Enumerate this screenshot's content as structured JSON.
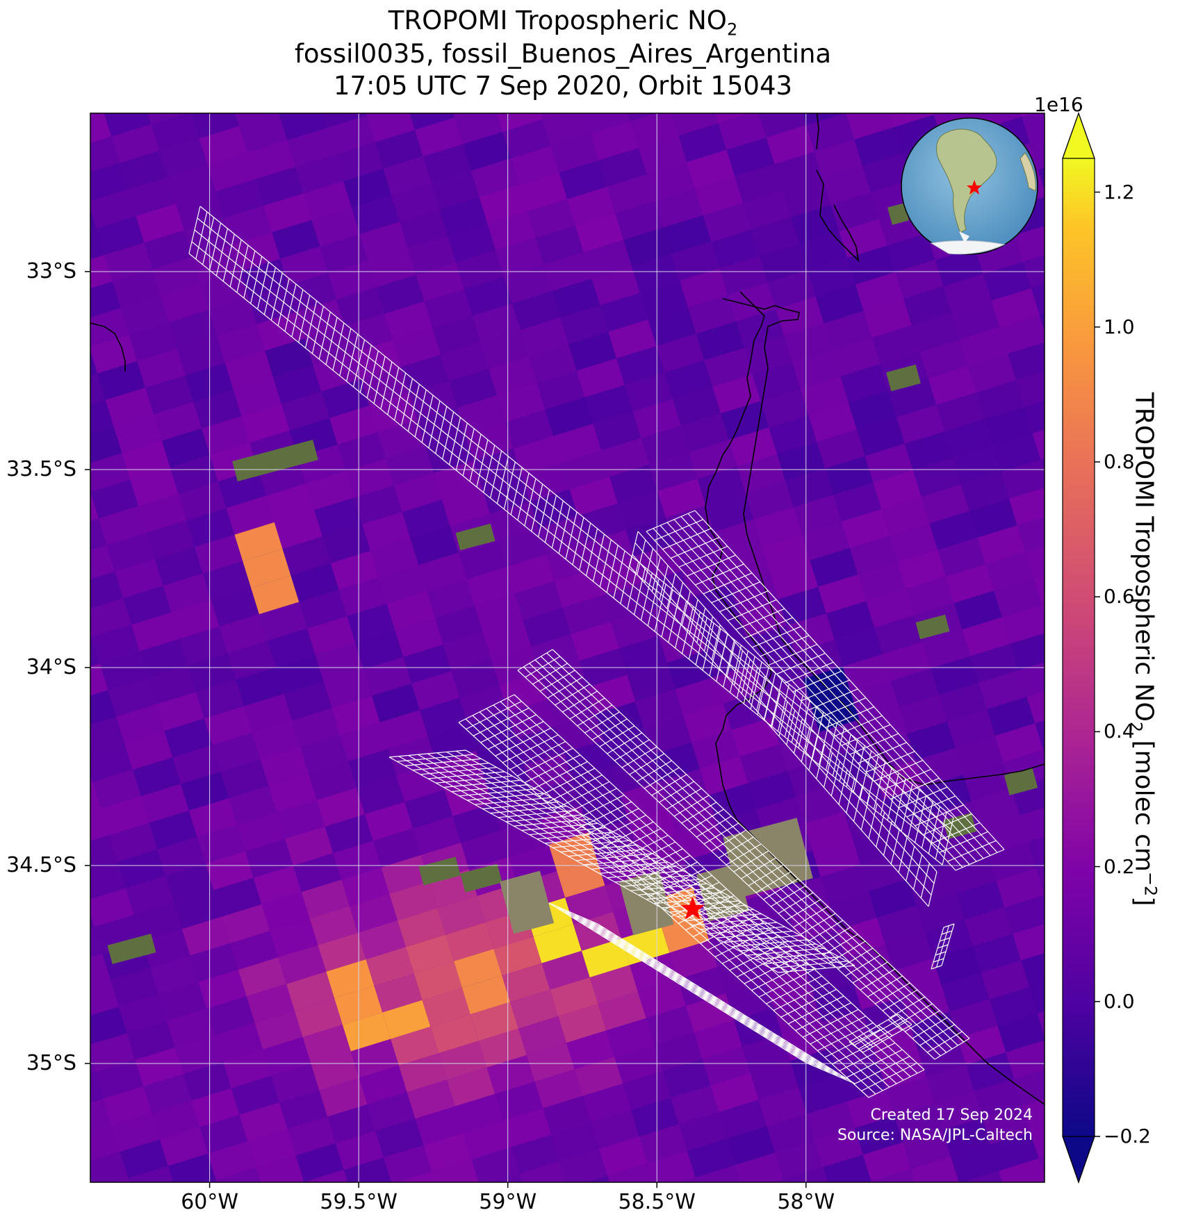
{
  "title": {
    "line1_prefix": "TROPOMI Tropospheric NO",
    "line1_sub": "2",
    "line2": "fossil0035, fossil_Buenos_Aires_Argentina",
    "line3": "17:05 UTC 7 Sep 2020, Orbit 15043"
  },
  "map": {
    "lon_range": [
      -60.4,
      -57.2
    ],
    "lat_range": [
      -35.3,
      -32.6
    ],
    "lat_ticks": [
      {
        "value": -33.0,
        "label": "33°S"
      },
      {
        "value": -33.5,
        "label": "33.5°S"
      },
      {
        "value": -34.0,
        "label": "34°S"
      },
      {
        "value": -34.5,
        "label": "34.5°S"
      },
      {
        "value": -35.0,
        "label": "35°S"
      }
    ],
    "lon_ticks": [
      {
        "value": -60.0,
        "label": "60°W"
      },
      {
        "value": -59.5,
        "label": "59.5°W"
      },
      {
        "value": -59.0,
        "label": "59°W"
      },
      {
        "value": -58.5,
        "label": "58.5°W"
      },
      {
        "value": -58.0,
        "label": "58°W"
      }
    ],
    "gridlines": true,
    "site_marker": {
      "lon": -58.38,
      "lat": -34.61,
      "symbol": "star",
      "color": "#ff0000"
    },
    "inset_globe": "south-america-globe-icon",
    "background_color": "#6a0aa8",
    "target_color": "#ffffff",
    "coastline_color": "#000000"
  },
  "colorbar": {
    "colormap": "plasma",
    "min": -0.2,
    "max": 1.25,
    "extend": "both",
    "exponent_label": "1e16",
    "ticks": [
      {
        "value": -0.2,
        "label": "−0.2"
      },
      {
        "value": 0.0,
        "label": "0.0"
      },
      {
        "value": 0.2,
        "label": "0.2"
      },
      {
        "value": 0.4,
        "label": "0.4"
      },
      {
        "value": 0.6,
        "label": "0.6"
      },
      {
        "value": 0.8,
        "label": "0.8"
      },
      {
        "value": 1.0,
        "label": "1.0"
      },
      {
        "value": 1.2,
        "label": "1.2"
      }
    ],
    "label_prefix": "TROPOMI Tropospheric NO",
    "label_sub": "2",
    "label_mid": " [molec cm",
    "label_sup": "−2",
    "label_suffix": "]"
  },
  "chart_data": {
    "type": "heatmap",
    "variable": "TROPOMI Tropospheric NO2",
    "units": "1e16 molec cm-2",
    "hotspots": [
      {
        "lon": -58.85,
        "lat": -34.65,
        "value": 1.2
      },
      {
        "lon": -58.6,
        "lat": -34.73,
        "value": 1.2
      },
      {
        "lon": -59.55,
        "lat": -34.85,
        "value": 0.95
      },
      {
        "lon": -59.4,
        "lat": -34.9,
        "value": 1.0
      },
      {
        "lon": -59.8,
        "lat": -33.75,
        "value": 0.9
      },
      {
        "lon": -58.8,
        "lat": -34.5,
        "value": 0.85
      },
      {
        "lon": -58.45,
        "lat": -34.65,
        "value": 0.9
      },
      {
        "lon": -59.05,
        "lat": -34.8,
        "value": 0.9
      },
      {
        "lon": -57.9,
        "lat": -34.1,
        "value": -0.2
      }
    ]
  },
  "credits": {
    "created": "Created 17 Sep 2024",
    "source": "Source: NASA/JPL-Caltech"
  }
}
